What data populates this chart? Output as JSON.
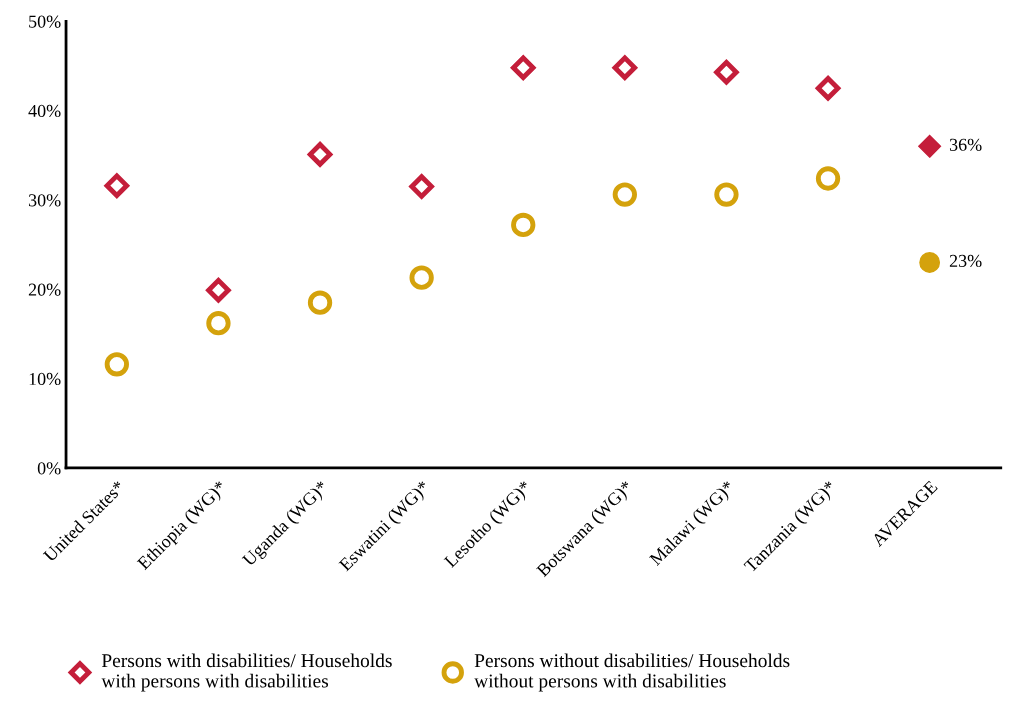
{
  "chart_data": {
    "type": "scatter",
    "categories": [
      "United States*",
      "Ethiopia (WG)*",
      "Uganda (WG)*",
      "Eswatini (WG)*",
      "Lesotho (WG)*",
      "Botswana (WG)*",
      "Malawi (WG)*",
      "Tanzania (WG)*",
      "AVERAGE"
    ],
    "series": [
      {
        "name": "Persons with disabilities/ Households\nwith persons with disabilities",
        "color": "#c41e3a",
        "marker": "diamond",
        "values": [
          31.6,
          19.9,
          35.1,
          31.5,
          44.8,
          44.8,
          44.3,
          42.5,
          null
        ]
      },
      {
        "name": "Persons without disabilities/ Households\nwithout persons with disabilities",
        "color": "#d4a20c",
        "marker": "circle",
        "values": [
          11.6,
          16.2,
          18.5,
          21.3,
          27.2,
          30.6,
          30.6,
          32.4,
          null
        ]
      },
      {
        "color": "#c41e3a",
        "marker": "diamond",
        "values": [
          null,
          null,
          null,
          null,
          null,
          null,
          null,
          null,
          36
        ],
        "value_labels": [
          null,
          null,
          null,
          null,
          null,
          null,
          null,
          null,
          "36%"
        ]
      },
      {
        "color": "#d4a20c",
        "marker": "circle",
        "values": [
          null,
          null,
          null,
          null,
          null,
          null,
          null,
          null,
          23
        ],
        "value_labels": [
          null,
          null,
          null,
          null,
          null,
          null,
          null,
          null,
          "23%"
        ]
      }
    ],
    "ylim": [
      0,
      50
    ],
    "yticks": [
      {
        "value": 0,
        "label": "0%"
      },
      {
        "value": 10,
        "label": "10%"
      },
      {
        "value": 20,
        "label": "20%"
      },
      {
        "value": 30,
        "label": "30%"
      },
      {
        "value": 40,
        "label": "40%"
      },
      {
        "value": 50,
        "label": "50%"
      }
    ],
    "grid": false,
    "legend": "bottom"
  }
}
